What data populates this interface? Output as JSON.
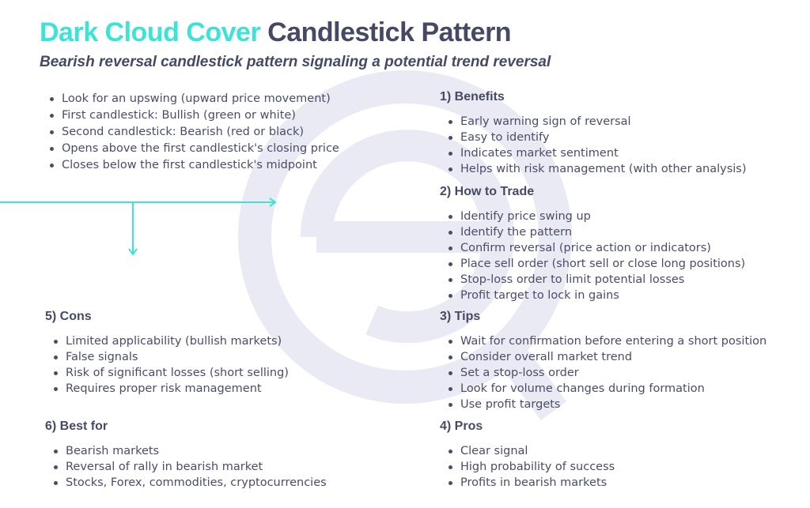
{
  "title": {
    "highlight": "Dark Cloud Cover",
    "rest": "Candlestick Pattern"
  },
  "subtitle": "Bearish reversal candlestick pattern signaling a potential trend reversal",
  "colors": {
    "accent": "#3de3d6",
    "text": "#464965",
    "watermark": "#e9eaf3"
  },
  "identification": [
    "Look for an upswing (upward price movement)",
    "First candlestick: Bullish (green or white)",
    "Second candlestick: Bearish (red or black)",
    "Opens above the first candlestick's closing price",
    "Closes below the first candlestick's midpoint"
  ],
  "sections": [
    {
      "heading": "1) Benefits",
      "items": [
        "Early warning sign of reversal",
        "Easy to identify",
        "Indicates market sentiment",
        "Helps with risk management (with other analysis)"
      ]
    },
    {
      "heading": "2) How to Trade",
      "items": [
        "Identify price swing up",
        "Identify the pattern",
        "Confirm reversal (price action or indicators)",
        "Place sell order (short sell or close long positions)",
        "Stop-loss order to limit potential losses",
        "Profit target to lock in gains"
      ]
    },
    {
      "heading": "3) Tips",
      "items": [
        "Wait for confirmation before entering a short position",
        "Consider overall market trend",
        "Set a stop-loss order",
        "Look for volume changes during formation",
        "Use profit targets"
      ]
    },
    {
      "heading": "4) Pros",
      "items": [
        "Clear signal",
        "High probability of success",
        "Profits in bearish markets"
      ]
    },
    {
      "heading": "5) Cons",
      "items": [
        "Limited applicability (bullish markets)",
        "False signals",
        "Risk of significant losses (short selling)",
        "Requires proper risk management"
      ]
    },
    {
      "heading": "6) Best for",
      "items": [
        "Bearish markets",
        "Reversal of rally in bearish market",
        "Stocks, Forex, commodities, cryptocurrencies"
      ]
    }
  ]
}
